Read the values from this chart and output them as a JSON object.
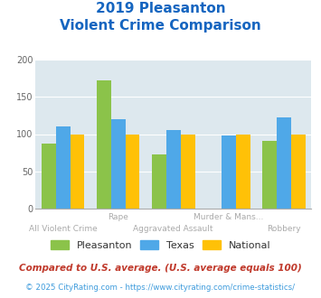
{
  "title_line1": "2019 Pleasanton",
  "title_line2": "Violent Crime Comparison",
  "categories": [
    "All Violent Crime",
    "Rape",
    "Aggravated Assault",
    "Murder & Mans...",
    "Robbery"
  ],
  "pleasanton": [
    87,
    172,
    73,
    0,
    91
  ],
  "texas": [
    110,
    120,
    106,
    98,
    123
  ],
  "national": [
    100,
    100,
    100,
    100,
    100
  ],
  "pleasanton_color": "#8bc34a",
  "texas_color": "#4fa8e8",
  "national_color": "#ffc107",
  "ylim": [
    0,
    200
  ],
  "yticks": [
    0,
    50,
    100,
    150,
    200
  ],
  "bg_color": "#dde8ee",
  "fig_bg": "#ffffff",
  "title_color": "#1565c0",
  "label_color": "#aaaaaa",
  "legend_text_color": "#333333",
  "footnote1": "Compared to U.S. average. (U.S. average equals 100)",
  "footnote2": "© 2025 CityRating.com - https://www.cityrating.com/crime-statistics/",
  "footnote1_color": "#c0392b",
  "footnote2_color": "#3d9bdc"
}
